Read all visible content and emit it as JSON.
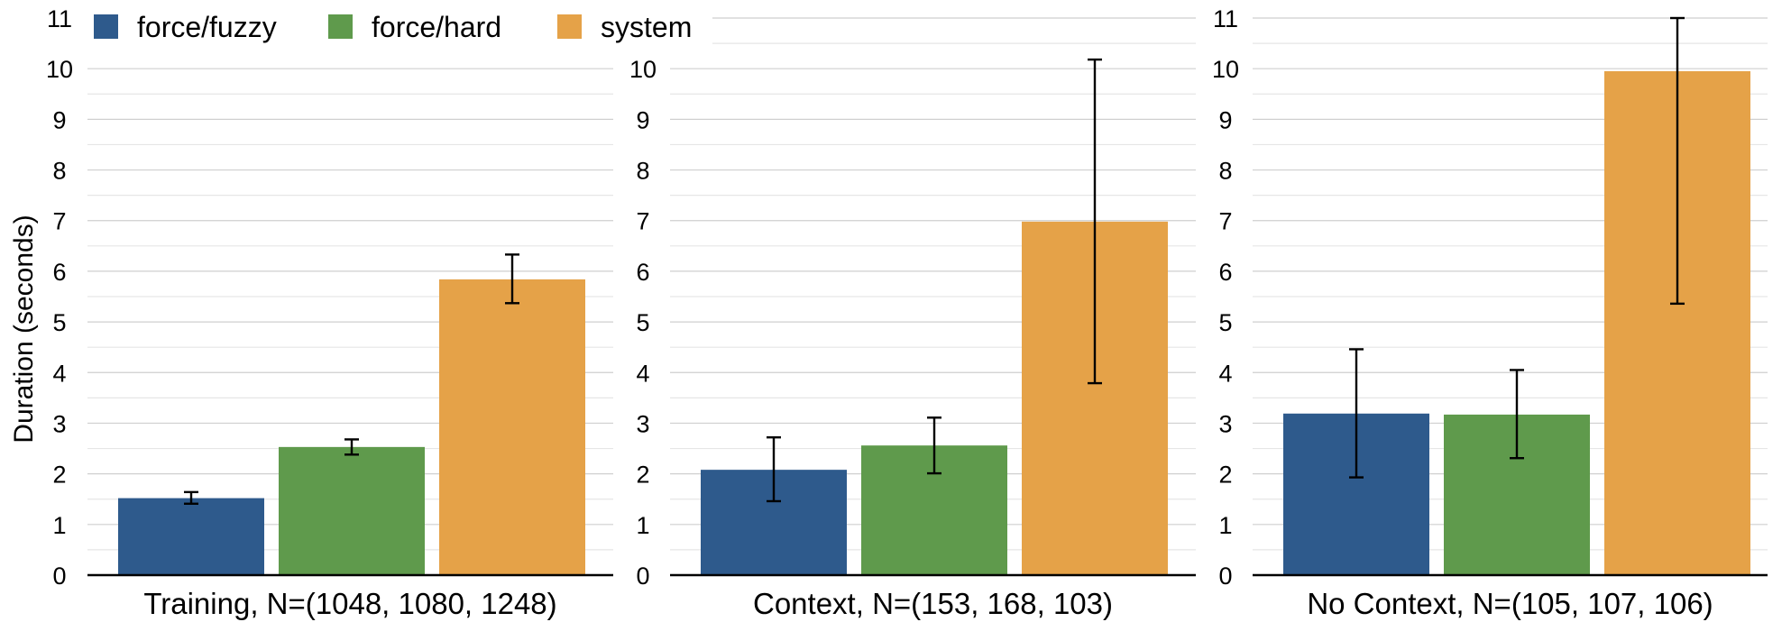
{
  "chart_data": {
    "type": "bar",
    "ylabel": "Duration (seconds)",
    "ylim": [
      0,
      11
    ],
    "yticks": [
      "0",
      "1",
      "2",
      "3",
      "4",
      "5",
      "6",
      "7",
      "8",
      "9",
      "10",
      "11"
    ],
    "grid": true,
    "legend_position": "top-left",
    "series": [
      {
        "name": "force/fuzzy",
        "color": "#2e5a8c"
      },
      {
        "name": "force/hard",
        "color": "#5f9a4c"
      },
      {
        "name": "system",
        "color": "#e5a248"
      }
    ],
    "panels": [
      {
        "xlabel": "Training, N=(1048, 1080, 1248)",
        "values": [
          1.52,
          2.53,
          5.84
        ],
        "error_low": [
          1.41,
          2.38,
          5.37
        ],
        "error_high": [
          1.64,
          2.68,
          6.33
        ]
      },
      {
        "xlabel": "Context, N=(153, 168, 103)",
        "values": [
          2.08,
          2.56,
          6.98
        ],
        "error_low": [
          1.46,
          2.01,
          3.79
        ],
        "error_high": [
          2.72,
          3.11,
          10.18
        ]
      },
      {
        "xlabel": "No Context, N=(105, 107, 106)",
        "values": [
          3.19,
          3.17,
          9.95
        ],
        "error_low": [
          1.93,
          2.31,
          5.36
        ],
        "error_high": [
          4.46,
          4.05,
          11.0
        ]
      }
    ]
  }
}
